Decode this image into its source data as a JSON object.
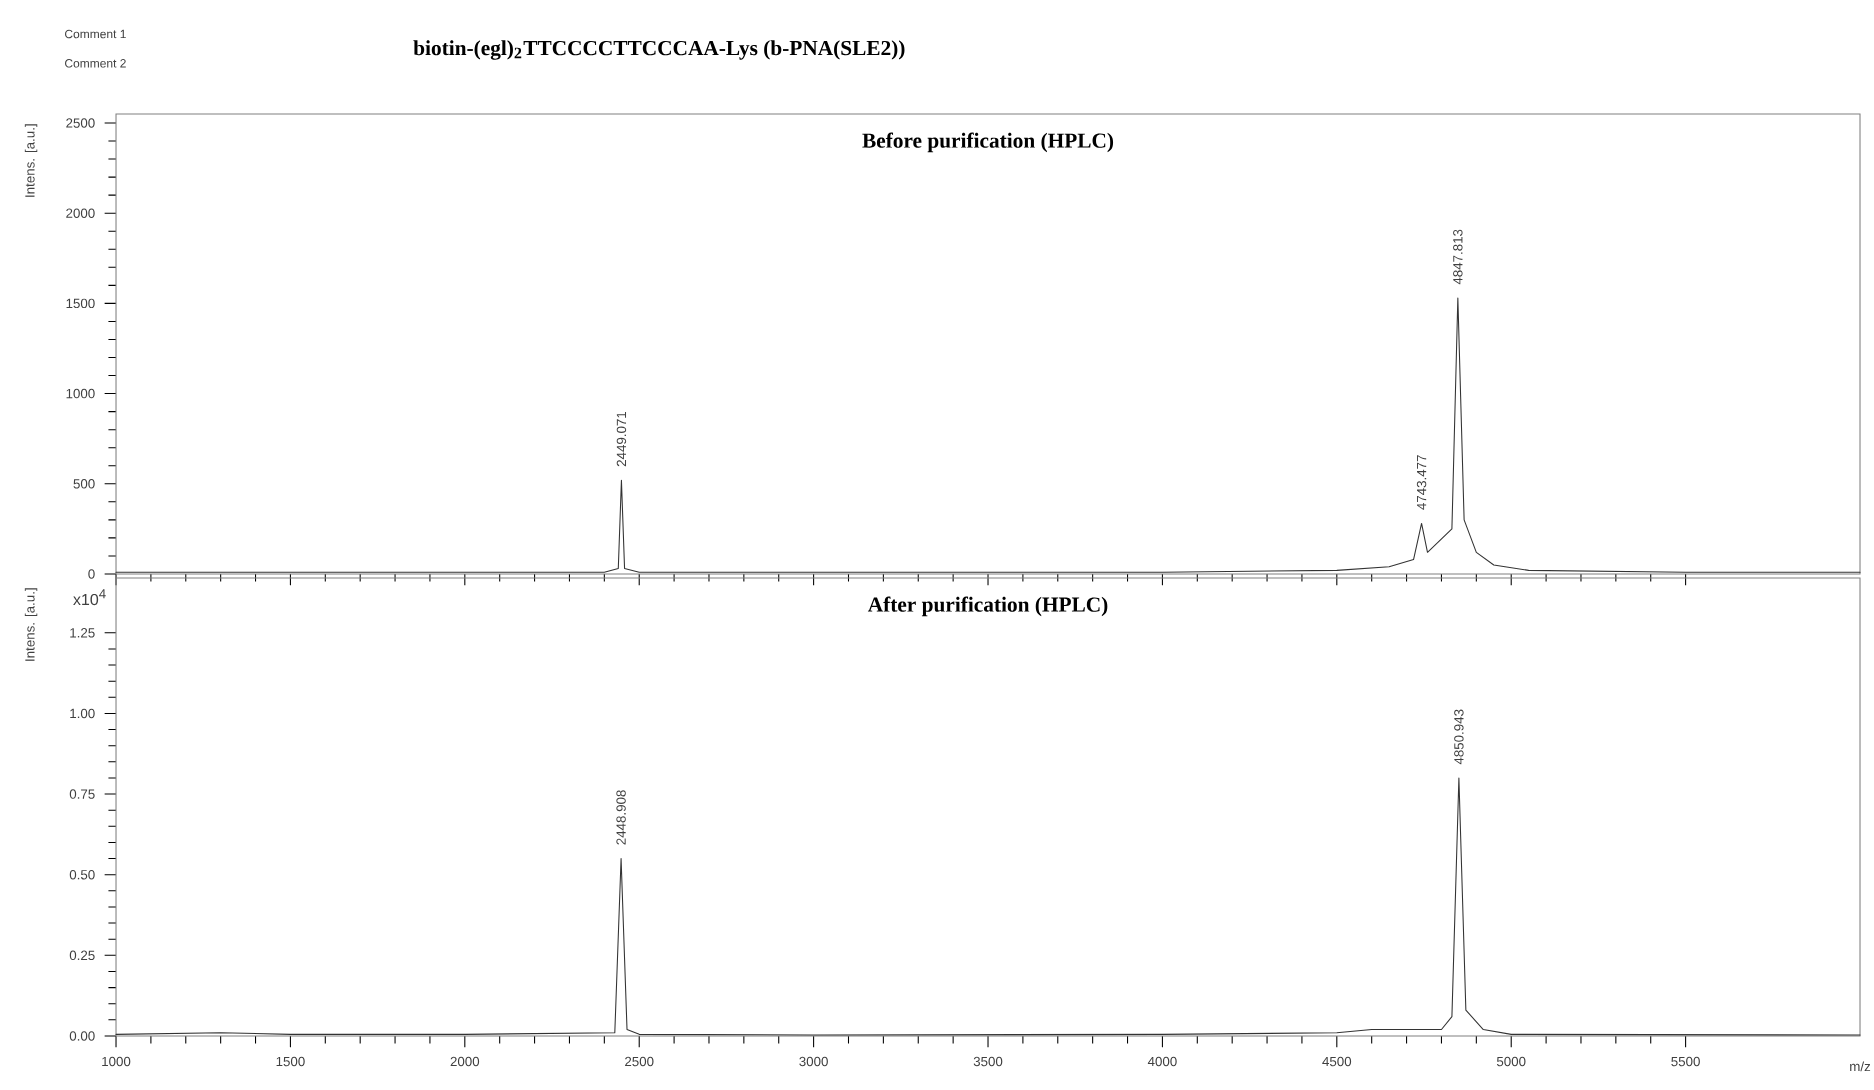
{
  "chart_data": [
    {
      "type": "line",
      "title": "biotin-(egl)$_{2}$TTCCCCTTCCCAA-Lys (b-PNA(SLE2))",
      "subtitle": "Before purification (HPLC)",
      "ylabel": "Intens. [a.u.]",
      "annotations": [
        "Comment 1",
        "Comment 2",
        {
          "text": "2449.071",
          "x": 2449,
          "y": 520
        },
        {
          "text": "4743.477",
          "x": 4743,
          "y": 280
        },
        {
          "text": "4847.813",
          "x": 4847,
          "y": 1530
        }
      ],
      "x": [
        1000,
        1300,
        1500,
        2000,
        2400,
        2440,
        2449,
        2458,
        2500,
        3000,
        3500,
        4000,
        4500,
        4650,
        4720,
        4743,
        4760,
        4830,
        4847,
        4865,
        4900,
        4950,
        5050,
        5500,
        6000
      ],
      "series": [
        {
          "color": "#333333",
          "values": [
            10,
            10,
            10,
            10,
            10,
            30,
            520,
            30,
            10,
            10,
            10,
            10,
            20,
            40,
            80,
            280,
            120,
            250,
            1530,
            300,
            120,
            50,
            20,
            10,
            10
          ]
        }
      ],
      "xlim": [
        1000,
        6000
      ],
      "xticks": [
        1000,
        1500,
        2000,
        2500,
        3000,
        3500,
        4000,
        4500,
        5000,
        5500
      ],
      "ylim": [
        0,
        2550
      ],
      "yticks": [
        0,
        500,
        1000,
        1500,
        2000,
        2500
      ],
      "tick_labels": "y",
      "marker": "none",
      "line_style": "solid"
    },
    {
      "type": "line",
      "title": "After purification (HPLC)",
      "ylabel": "Intens. [a.u.]",
      "xlabel": "m/z",
      "annotations": [
        "x10$^{4}$",
        {
          "text": "2448.908",
          "x": 2448,
          "y": 0.55
        },
        {
          "text": "4850.943",
          "x": 4850,
          "y": 0.8
        }
      ],
      "x": [
        1000,
        1300,
        1500,
        2000,
        2430,
        2448,
        2465,
        2500,
        3000,
        4000,
        4500,
        4600,
        4800,
        4830,
        4850,
        4870,
        4920,
        5000,
        6000
      ],
      "series": [
        {
          "color": "#333333",
          "values": [
            0.005,
            0.01,
            0.005,
            0.005,
            0.01,
            0.55,
            0.02,
            0.005,
            0.003,
            0.005,
            0.01,
            0.02,
            0.02,
            0.06,
            0.8,
            0.08,
            0.02,
            0.005,
            0.003
          ]
        }
      ],
      "xlim": [
        1000,
        6000
      ],
      "xticks": [
        1000,
        1500,
        2000,
        2500,
        3000,
        3500,
        4000,
        4500,
        5000,
        5500
      ],
      "ylim": [
        0,
        1.42
      ],
      "yticks": [
        {
          "value": 0,
          "label": "0.00"
        },
        {
          "value": 0.25,
          "label": "0.25"
        },
        {
          "value": 0.5,
          "label": "0.50"
        },
        {
          "value": 0.75,
          "label": "0.75"
        },
        {
          "value": 1,
          "label": "1.00"
        },
        {
          "value": 1.25,
          "label": "1.25"
        }
      ],
      "marker": "none",
      "line_style": "solid"
    }
  ]
}
